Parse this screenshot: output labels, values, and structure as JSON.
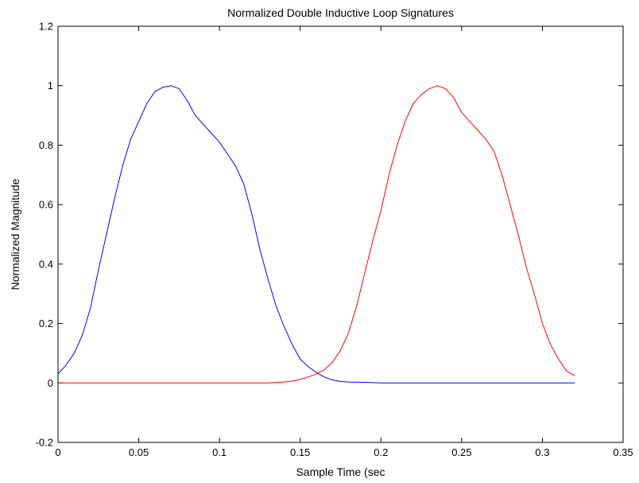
{
  "chart_data": {
    "type": "line",
    "title": "Normalized Double Inductive Loop Signatures",
    "xlabel": "Sample Time (sec",
    "ylabel": "Normalized Magnitude",
    "xlim": [
      0,
      0.35
    ],
    "ylim": [
      -0.2,
      1.2
    ],
    "xticks": [
      0,
      0.05,
      0.1,
      0.15,
      0.2,
      0.25,
      0.3,
      0.35
    ],
    "xtick_labels": [
      "0",
      "0.05",
      "0.1",
      "0.15",
      "0.2",
      "0.25",
      "0.3",
      "0.35"
    ],
    "yticks": [
      -0.2,
      0,
      0.2,
      0.4,
      0.6,
      0.8,
      1.0,
      1.2
    ],
    "ytick_labels": [
      "-0.2",
      "0",
      "0.2",
      "0.4",
      "0.6",
      "0.8",
      "1",
      "1.2"
    ],
    "grid": false,
    "series": [
      {
        "color": "#0000ff",
        "x": [
          0,
          0.005,
          0.01,
          0.015,
          0.02,
          0.025,
          0.03,
          0.035,
          0.04,
          0.045,
          0.05,
          0.055,
          0.06,
          0.065,
          0.07,
          0.075,
          0.08,
          0.085,
          0.09,
          0.095,
          0.1,
          0.105,
          0.11,
          0.115,
          0.12,
          0.125,
          0.13,
          0.135,
          0.14,
          0.145,
          0.15,
          0.155,
          0.16,
          0.165,
          0.17,
          0.175,
          0.18,
          0.19,
          0.2,
          0.25,
          0.3,
          0.32
        ],
        "y": [
          0.03,
          0.06,
          0.1,
          0.16,
          0.25,
          0.38,
          0.5,
          0.62,
          0.73,
          0.82,
          0.88,
          0.94,
          0.98,
          0.995,
          1.0,
          0.99,
          0.95,
          0.9,
          0.87,
          0.84,
          0.81,
          0.77,
          0.73,
          0.67,
          0.57,
          0.45,
          0.35,
          0.26,
          0.19,
          0.13,
          0.08,
          0.055,
          0.035,
          0.02,
          0.01,
          0.005,
          0.003,
          0.002,
          0.0,
          0.0,
          0.0,
          0.0
        ]
      },
      {
        "color": "#ff0000",
        "x": [
          0,
          0.05,
          0.1,
          0.13,
          0.14,
          0.145,
          0.15,
          0.155,
          0.16,
          0.165,
          0.17,
          0.175,
          0.18,
          0.185,
          0.19,
          0.195,
          0.2,
          0.205,
          0.21,
          0.215,
          0.22,
          0.225,
          0.23,
          0.235,
          0.24,
          0.245,
          0.25,
          0.255,
          0.26,
          0.265,
          0.27,
          0.275,
          0.28,
          0.285,
          0.29,
          0.295,
          0.3,
          0.305,
          0.31,
          0.315,
          0.32
        ],
        "y": [
          0.0,
          0.0,
          0.0,
          0.0,
          0.003,
          0.006,
          0.012,
          0.02,
          0.03,
          0.045,
          0.07,
          0.11,
          0.17,
          0.26,
          0.37,
          0.48,
          0.58,
          0.7,
          0.8,
          0.88,
          0.94,
          0.97,
          0.99,
          1.0,
          0.99,
          0.96,
          0.91,
          0.88,
          0.85,
          0.82,
          0.78,
          0.7,
          0.6,
          0.5,
          0.39,
          0.3,
          0.2,
          0.13,
          0.08,
          0.04,
          0.025
        ]
      }
    ]
  }
}
